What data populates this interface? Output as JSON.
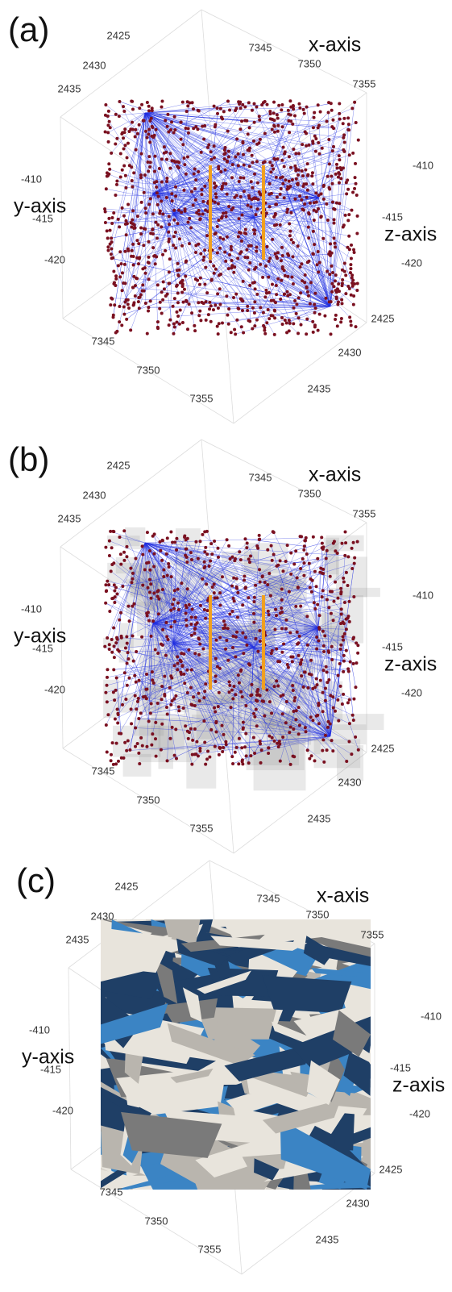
{
  "panels": [
    {
      "label": "(a)",
      "x_axis_title": "x-axis",
      "y_axis_title": "y-axis",
      "z_axis_title": "z-axis",
      "tick_labels": [
        "2425",
        "2430",
        "2435",
        "7345",
        "7350",
        "7355",
        "-410",
        "-415",
        "-420",
        "-410",
        "-415",
        "-420",
        "7345",
        "7350",
        "7355",
        "2425",
        "2430",
        "2435"
      ]
    },
    {
      "label": "(b)",
      "x_axis_title": "x-axis",
      "y_axis_title": "y-axis",
      "z_axis_title": "z-axis",
      "tick_labels": [
        "2425",
        "2430",
        "2435",
        "7345",
        "7350",
        "7355",
        "-410",
        "-415",
        "-420",
        "-410",
        "-415",
        "-420",
        "7345",
        "7350",
        "7355",
        "2425",
        "2430",
        "2435"
      ]
    },
    {
      "label": "(c)",
      "x_axis_title": "x-axis",
      "y_axis_title": "y-axis",
      "z_axis_title": "z-axis",
      "tick_labels": [
        "2425",
        "2430",
        "2435",
        "7345",
        "7350",
        "7355",
        "-410",
        "-415",
        "-420",
        "-410",
        "-415",
        "-420",
        "7345",
        "7350",
        "7355",
        "2425",
        "2430",
        "2435"
      ]
    }
  ]
}
